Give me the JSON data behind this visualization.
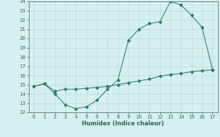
{
  "xlabel": "Humidex (Indice chaleur)",
  "line1_x": [
    0,
    1,
    2,
    3,
    4,
    5,
    6,
    7,
    8,
    9,
    10,
    11,
    12,
    13,
    14,
    15,
    16,
    17
  ],
  "line1_y": [
    14.8,
    15.1,
    14.0,
    12.8,
    12.4,
    12.6,
    13.3,
    14.5,
    15.5,
    19.8,
    21.0,
    21.6,
    21.8,
    24.0,
    23.6,
    22.5,
    21.2,
    16.6
  ],
  "line2_x": [
    0,
    1,
    2,
    3,
    4,
    5,
    6,
    7,
    8,
    9,
    10,
    11,
    12,
    13,
    14,
    15,
    16,
    17
  ],
  "line2_y": [
    14.8,
    15.1,
    14.3,
    14.5,
    14.5,
    14.6,
    14.7,
    14.8,
    15.0,
    15.2,
    15.4,
    15.6,
    15.9,
    16.1,
    16.2,
    16.4,
    16.5,
    16.6
  ],
  "line_color": "#2e7d6e",
  "bg_color": "#d6f0ef",
  "grid_color": "#b8d8d8",
  "xlim": [
    -0.5,
    17.5
  ],
  "ylim": [
    12,
    24
  ],
  "xticks": [
    0,
    1,
    2,
    3,
    4,
    5,
    6,
    7,
    8,
    9,
    10,
    11,
    12,
    13,
    14,
    15,
    16,
    17
  ],
  "yticks": [
    12,
    13,
    14,
    15,
    16,
    17,
    18,
    19,
    20,
    21,
    22,
    23,
    24
  ]
}
